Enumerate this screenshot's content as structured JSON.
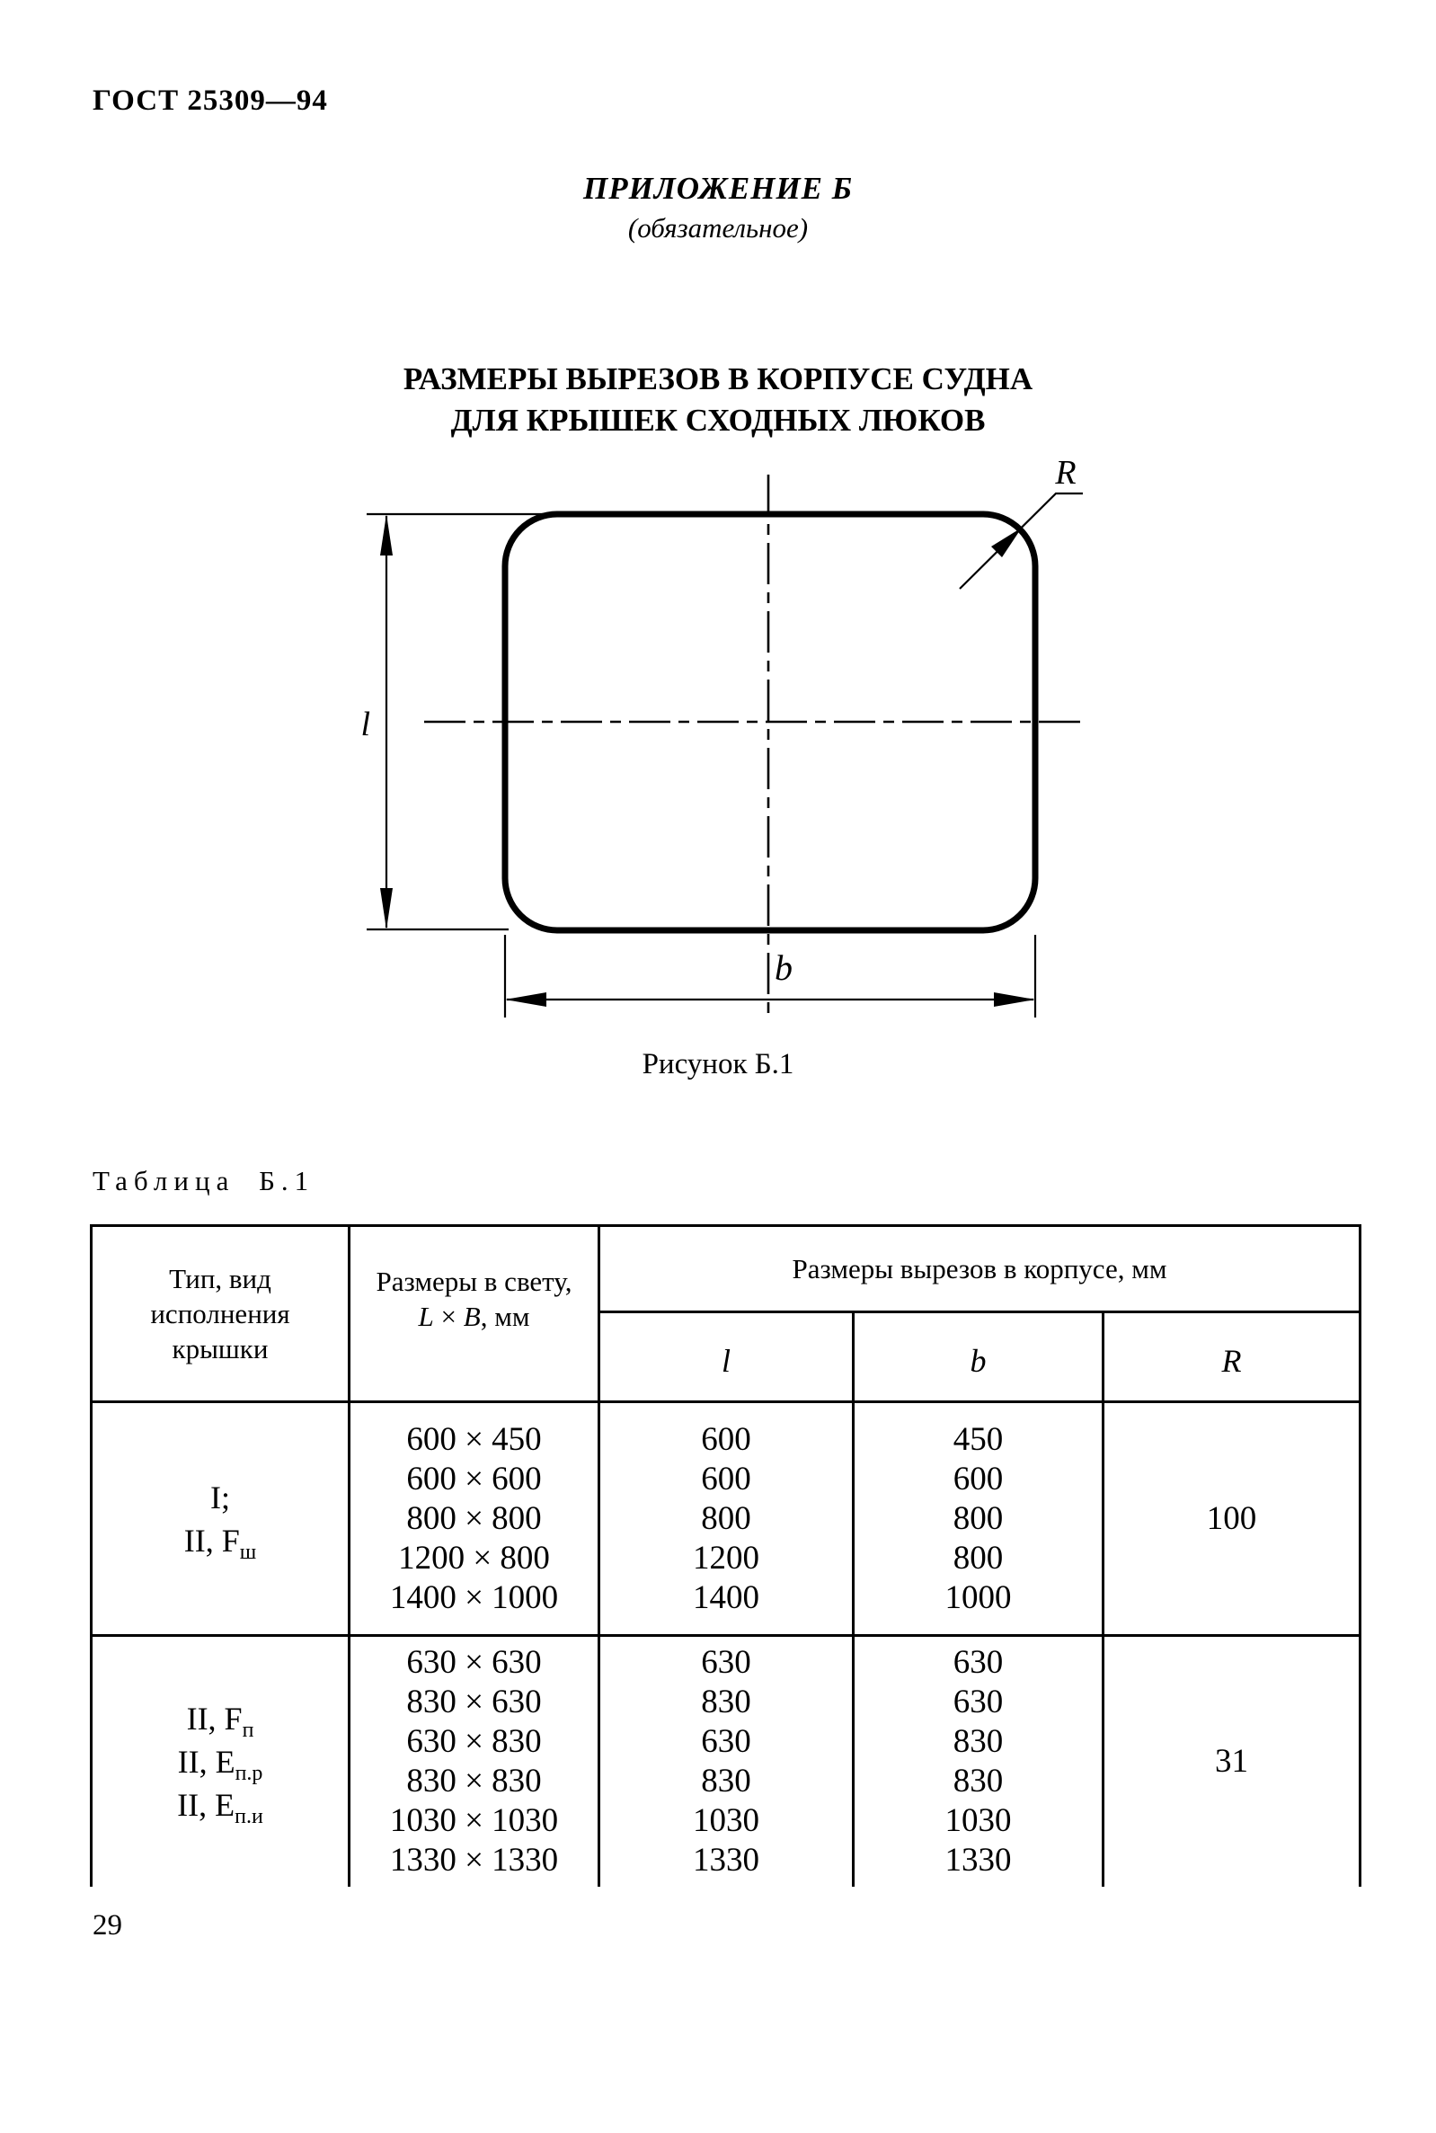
{
  "doc": {
    "number": "ГОСТ 25309—94",
    "page_number": "29"
  },
  "appendix": {
    "title": "ПРИЛОЖЕНИЕ Б",
    "subtitle": "(обязательное)"
  },
  "heading": {
    "line1": "РАЗМЕРЫ ВЫРЕЗОВ В КОРПУСЕ СУДНА",
    "line2": "ДЛЯ КРЫШЕК СХОДНЫХ ЛЮКОВ"
  },
  "figure": {
    "caption": "Рисунок Б.1",
    "label_radius": "R",
    "label_height": "l",
    "label_width": "b"
  },
  "table": {
    "label": "Таблица Б.1",
    "header": {
      "type_lines": [
        "Тип, вид",
        "исполнения",
        "крышки"
      ],
      "size_line1": "Размеры в свету,",
      "size_L": "L",
      "size_times": "×",
      "size_B": "B",
      "size_units": ", мм",
      "group": "Размеры вырезов в корпусе, мм",
      "sub_l": "l",
      "sub_b": "b",
      "sub_r": "R"
    },
    "sections": [
      {
        "types": [
          [
            "I;"
          ],
          [
            "II, F",
            "ш"
          ]
        ],
        "sizes": [
          "600 × 450",
          "600 × 600",
          "800 × 800",
          "1200 × 800",
          "1400 × 1000"
        ],
        "l": [
          "600",
          "600",
          "800",
          "1200",
          "1400"
        ],
        "b": [
          "450",
          "600",
          "800",
          "800",
          "1000"
        ],
        "r": "100"
      },
      {
        "types": [
          [
            "II, F",
            "п"
          ],
          [
            "II, Е",
            "п.р"
          ],
          [
            "II, Е",
            "п.и"
          ]
        ],
        "sizes": [
          "630 × 630",
          "830 × 630",
          "630 × 830",
          "830 × 830",
          "1030 × 1030",
          "1330 × 1330"
        ],
        "l": [
          "630",
          "830",
          "630",
          "830",
          "1030",
          "1330"
        ],
        "b": [
          "630",
          "630",
          "830",
          "830",
          "1030",
          "1330"
        ],
        "r": "31"
      }
    ]
  }
}
